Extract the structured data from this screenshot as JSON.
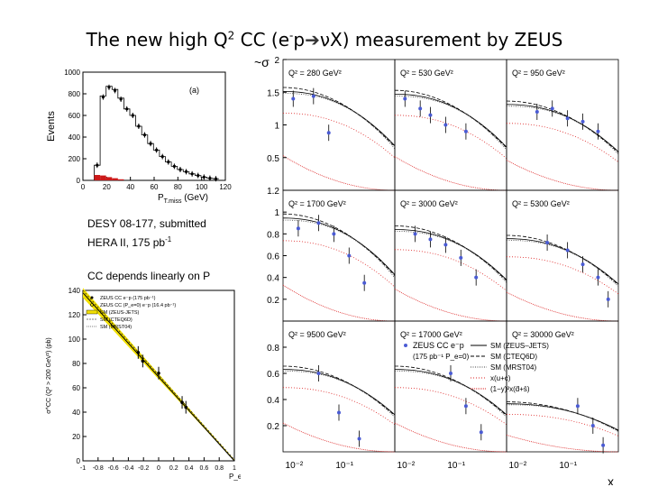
{
  "slide": {
    "title_main": "The new high Q",
    "title_sup": "2",
    "title_mid": " CC (e",
    "title_minus": "-",
    "title_p": "p",
    "title_end": "νX)  measurement  by ZEUS",
    "note1_line1": "DESY 08-177, submitted",
    "note1_line2": "HERA II, 175 pb",
    "note1_sup": "-1",
    "note2": "CC depends linearly on P"
  },
  "chart_data": [
    {
      "type": "bar",
      "panel_label": "(a)",
      "ylabel": "Events",
      "xlabel": "P_T,miss (GeV)",
      "xlabel_main": "P",
      "xlabel_sub": "T,miss",
      "xlabel_unit": "(GeV)",
      "xlim": [
        0,
        120
      ],
      "ylim": [
        0,
        1000
      ],
      "x_ticks": [
        "0",
        "20",
        "40",
        "60",
        "80",
        "100",
        "120"
      ],
      "y_ticks": [
        "0",
        "200",
        "400",
        "600",
        "800",
        "1000"
      ],
      "data_points": {
        "x": [
          12,
          17,
          22,
          27,
          32,
          37,
          42,
          47,
          52,
          57,
          62,
          67,
          72,
          77,
          82,
          87,
          92,
          97,
          102,
          107,
          112
        ],
        "y": [
          140,
          770,
          860,
          830,
          750,
          660,
          600,
          500,
          420,
          340,
          280,
          220,
          170,
          130,
          100,
          80,
          60,
          45,
          30,
          20,
          15
        ]
      },
      "mc_histogram": [
        140,
        780,
        870,
        840,
        760,
        660,
        600,
        500,
        420,
        340,
        280,
        220,
        170,
        130,
        100,
        80,
        60,
        45,
        30,
        20,
        15
      ],
      "background": [
        50,
        45,
        30,
        20,
        10
      ]
    },
    {
      "type": "line",
      "ylabel": "σ^CC (Q² > 200 GeV²) (pb)",
      "xlabel": "P_e",
      "xlim": [
        -1,
        1
      ],
      "ylim": [
        0,
        140
      ],
      "x_ticks": [
        "-1",
        "-0.8",
        "-0.6",
        "-0.4",
        "-0.2",
        "0",
        "0.2",
        "0.4",
        "0.6",
        "0.8",
        "1"
      ],
      "y_ticks": [
        "0",
        "20",
        "40",
        "60",
        "80",
        "100",
        "120",
        "140"
      ],
      "legend": [
        "ZEUS CC e⁻p (175 pb⁻¹)",
        "ZEUS CC (P_e=0) e⁻p (16.4 pb⁻¹)",
        "SM (ZEUS-JETS)",
        "SM (CTEQ6D)",
        "SM (MRST04)"
      ],
      "line": {
        "x": [
          -1,
          1
        ],
        "y": [
          138,
          0
        ]
      },
      "points": {
        "x": [
          -0.27,
          -0.21,
          0.0,
          0.31,
          0.36
        ],
        "y": [
          89,
          82,
          72,
          48,
          44
        ]
      }
    },
    {
      "type": "scatter",
      "ylabel": "~σ",
      "xlabel": "x",
      "legend": [
        "ZEUS CC e⁻p",
        "(175 pb⁻¹ P_e=0)",
        "SM (ZEUS–JETS)",
        "SM (CTEQ6D)",
        "SM (MRST04)",
        "x(u+c)",
        "(1−y)²x(d̄+s̄)"
      ],
      "x_ticks": [
        "10⁻²",
        "10⁻¹",
        "10⁻²",
        "10⁻¹",
        "10⁻²",
        "10⁻¹"
      ],
      "row_y_ticks": [
        [
          "2",
          "1.5",
          "1",
          "0.5"
        ],
        [
          "1.2",
          "1",
          "0.8",
          "0.6",
          "0.4",
          "0.2"
        ],
        [
          "0.8",
          "0.6",
          "0.4",
          "0.2"
        ]
      ],
      "row_ylim": [
        [
          0,
          2.0
        ],
        [
          0,
          1.2
        ],
        [
          0,
          1.0
        ]
      ],
      "xlim": [
        -2.2,
        0
      ],
      "panels": [
        {
          "label": "Q² = 280 GeV²",
          "x": [
            -2.0,
            -1.6,
            -1.3
          ],
          "y": [
            1.4,
            1.44,
            0.88
          ]
        },
        {
          "label": "Q² = 530 GeV²",
          "x": [
            -2.0,
            -1.7,
            -1.5,
            -1.2,
            -0.8
          ],
          "y": [
            1.4,
            1.25,
            1.15,
            1.0,
            0.9
          ]
        },
        {
          "label": "Q² = 950 GeV²",
          "x": [
            -1.6,
            -1.3,
            -1.0,
            -0.7,
            -0.4
          ],
          "y": [
            1.2,
            1.25,
            1.1,
            1.05,
            0.9
          ]
        },
        {
          "label": "Q² = 1700 GeV²",
          "x": [
            -1.9,
            -1.5,
            -1.2,
            -0.9,
            -0.6
          ],
          "y": [
            0.85,
            0.9,
            0.8,
            0.6,
            0.35
          ]
        },
        {
          "label": "Q² = 3000 GeV²",
          "x": [
            -1.8,
            -1.5,
            -1.2,
            -0.9,
            -0.6
          ],
          "y": [
            0.8,
            0.75,
            0.7,
            0.58,
            0.4
          ]
        },
        {
          "label": "Q² = 5300 GeV²",
          "x": [
            -1.4,
            -1.0,
            -0.7,
            -0.4,
            -0.2
          ],
          "y": [
            0.72,
            0.65,
            0.52,
            0.4,
            0.2
          ]
        },
        {
          "label": "Q² = 9500 GeV²",
          "x": [
            -1.5,
            -1.1,
            -0.7
          ],
          "y": [
            0.6,
            0.3,
            0.1
          ]
        },
        {
          "label": "Q² = 17000 GeV²",
          "x": [
            -1.1,
            -0.8,
            -0.5
          ],
          "y": [
            0.6,
            0.35,
            0.15
          ]
        },
        {
          "label": "Q² = 30000 GeV²",
          "x": [
            -0.8,
            -0.5,
            -0.3
          ],
          "y": [
            0.35,
            0.2,
            0.05
          ]
        }
      ]
    }
  ]
}
